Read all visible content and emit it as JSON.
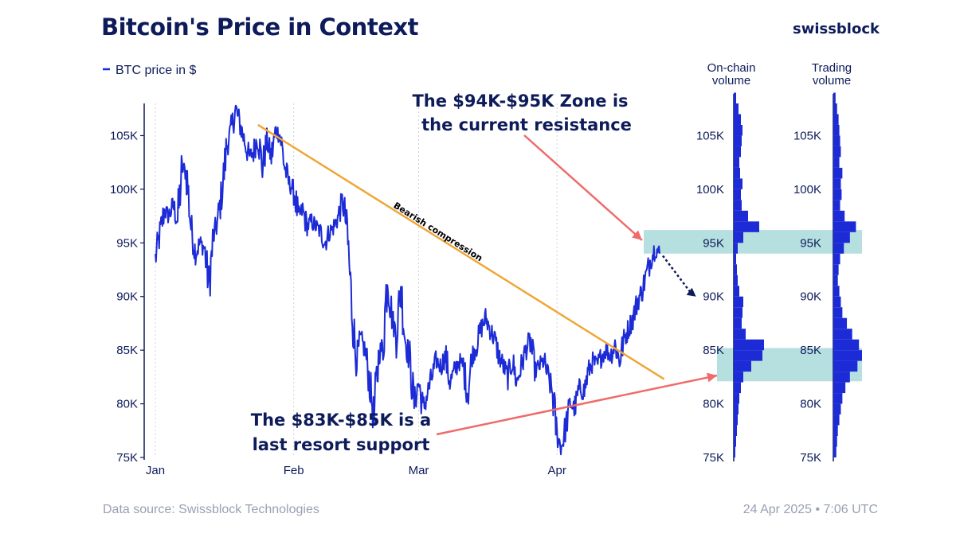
{
  "header": {
    "title": "Bitcoin's Price in Context",
    "brand": "swissblock"
  },
  "colors": {
    "price": "#1c2bd6",
    "trend": "#f0a534",
    "arrow": "#f06a6a",
    "zone": "#a9dadb",
    "text": "#0d1b5a",
    "muted": "#9aa0b4"
  },
  "chart_data": [
    {
      "type": "line",
      "title": "Bitcoin's Price in Context",
      "legend": "BTC price in $",
      "ylabel": "",
      "xlabel": "",
      "ylim": [
        75000,
        108000
      ],
      "x_ticks": [
        "Jan",
        "Feb",
        "Mar",
        "Apr"
      ],
      "y_ticks": [
        "75K",
        "80K",
        "85K",
        "90K",
        "95K",
        "100K",
        "105K"
      ],
      "y_tick_values": [
        75000,
        80000,
        85000,
        90000,
        95000,
        100000,
        105000
      ],
      "x_unit": "days since Jan 1, 2025",
      "series": [
        {
          "name": "BTC price in $",
          "x": [
            0,
            1,
            2,
            3,
            4,
            5,
            6,
            7,
            8,
            9,
            10,
            11,
            12,
            13,
            14,
            15,
            16,
            17,
            18,
            19,
            20,
            21,
            22,
            23,
            24,
            25,
            26,
            27,
            28,
            29,
            30,
            31,
            32,
            33,
            34,
            35,
            36,
            37,
            38,
            39,
            40,
            41,
            42,
            43,
            44,
            45,
            46,
            47,
            48,
            49,
            50,
            51,
            52,
            53,
            54,
            55,
            56,
            57,
            58,
            59,
            60,
            61,
            62,
            63,
            64,
            65,
            66,
            67,
            68,
            69,
            70,
            71,
            72,
            73,
            74,
            75,
            76,
            77,
            78,
            79,
            80,
            81,
            82,
            83,
            84,
            85,
            86,
            87,
            88,
            89,
            90,
            91,
            92,
            93,
            94,
            95,
            96,
            97,
            98,
            99,
            100,
            101,
            102,
            103,
            104,
            105,
            106,
            107,
            108,
            109,
            110,
            111,
            112,
            113
          ],
          "values": [
            93500,
            95800,
            98000,
            97500,
            98500,
            97000,
            102000,
            101500,
            96500,
            94000,
            95000,
            94500,
            91000,
            95500,
            97000,
            100000,
            104000,
            105500,
            107500,
            106000,
            104500,
            103000,
            103500,
            105000,
            102000,
            104500,
            103000,
            105500,
            105000,
            102000,
            100500,
            100000,
            97500,
            98000,
            96500,
            97000,
            96500,
            96000,
            95000,
            96000,
            96500,
            97500,
            99000,
            96000,
            89000,
            84000,
            86000,
            85000,
            82000,
            78500,
            84500,
            85500,
            92000,
            88000,
            86500,
            91000,
            86000,
            84000,
            80000,
            82000,
            79500,
            81000,
            82500,
            84000,
            83500,
            84500,
            82000,
            83000,
            84000,
            83500,
            81000,
            84500,
            85500,
            87000,
            88000,
            87000,
            86000,
            84500,
            83500,
            82500,
            84000,
            82000,
            83500,
            85000,
            86000,
            83000,
            83500,
            84000,
            82500,
            81000,
            77000,
            76000,
            78000,
            80000,
            79500,
            81500,
            81000,
            83000,
            84000,
            83500,
            84500,
            85000,
            84500,
            85500,
            84000,
            86000,
            87000,
            88000,
            89500,
            90500,
            92000,
            93500,
            94500,
            94000
          ]
        }
      ],
      "annotations": {
        "trend_label": "Bearish compression",
        "trend_start": {
          "x": 23,
          "y": 106000
        },
        "trend_end": {
          "x": 114,
          "y": 82300
        },
        "projection": {
          "from": {
            "x": 113,
            "y": 93800
          },
          "to": {
            "x": 119,
            "y": 90000
          }
        },
        "resistance_zone": {
          "low": 94000,
          "high": 96200
        },
        "support_zone": {
          "low": 82100,
          "high": 85200
        }
      }
    },
    {
      "type": "bar",
      "title": "On-chain volume",
      "orientation": "horizontal",
      "y_ticks": [
        "75K",
        "80K",
        "85K",
        "90K",
        "95K",
        "100K",
        "105K"
      ],
      "price_levels": [
        75000,
        76000,
        77000,
        78000,
        79000,
        80000,
        81000,
        82000,
        83000,
        84000,
        85000,
        86000,
        87000,
        88000,
        89000,
        90000,
        91000,
        92000,
        93000,
        94000,
        95000,
        96000,
        97000,
        98000,
        99000,
        100000,
        101000,
        102000,
        103000,
        104000,
        105000,
        106000,
        107000,
        108000
      ],
      "values": [
        2,
        3,
        4,
        5,
        6,
        7,
        9,
        12,
        22,
        36,
        38,
        15,
        10,
        11,
        12,
        7,
        5,
        4,
        3,
        5,
        12,
        32,
        18,
        10,
        9,
        11,
        8,
        7,
        9,
        10,
        11,
        9,
        6,
        3
      ]
    },
    {
      "type": "bar",
      "title": "Trading volume",
      "orientation": "horizontal",
      "y_ticks": [
        "75K",
        "80K",
        "85K",
        "90K",
        "95K",
        "100K",
        "105K"
      ],
      "price_levels": [
        75000,
        76000,
        77000,
        78000,
        79000,
        80000,
        81000,
        82000,
        83000,
        84000,
        85000,
        86000,
        87000,
        88000,
        89000,
        90000,
        91000,
        92000,
        93000,
        94000,
        95000,
        96000,
        97000,
        98000,
        99000,
        100000,
        101000,
        102000,
        103000,
        104000,
        105000,
        106000,
        107000,
        108000
      ],
      "values": [
        4,
        5,
        6,
        8,
        10,
        12,
        16,
        22,
        32,
        38,
        34,
        25,
        18,
        12,
        10,
        8,
        6,
        7,
        9,
        14,
        22,
        30,
        15,
        9,
        11,
        10,
        12,
        8,
        10,
        9,
        8,
        7,
        5,
        3
      ]
    }
  ],
  "price_chart": {
    "legend_label": "BTC price in $",
    "x_labels": [
      "Jan",
      "Feb",
      "Mar",
      "Apr"
    ],
    "x_label_days": [
      0,
      31,
      59,
      90
    ],
    "y_labels": [
      "75K",
      "80K",
      "85K",
      "90K",
      "95K",
      "100K",
      "105K"
    ]
  },
  "volume": {
    "onchain_title_line1": "On-chain",
    "onchain_title_line2": "volume",
    "trading_title_line1": "Trading",
    "trading_title_line2": "volume"
  },
  "annotations": {
    "resistance_line1": "The $94K-$95K Zone is",
    "resistance_line2": "the current resistance",
    "support_line1": "The $83K-$85K is a",
    "support_line2": "last resort support",
    "trend_label": "Bearish compression"
  },
  "footer": {
    "source": "Data source: Swissblock Technologies",
    "timestamp": "24 Apr 2025 • 7:06 UTC"
  }
}
